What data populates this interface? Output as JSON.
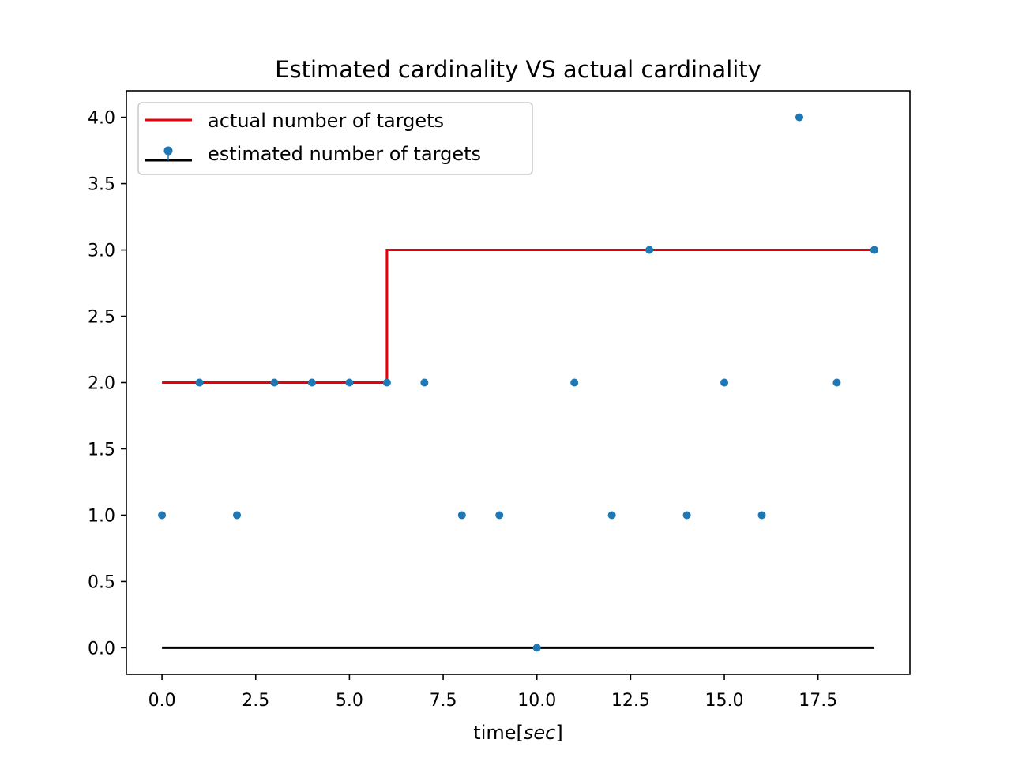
{
  "chart_data": {
    "type": "line",
    "title": "Estimated cardinality VS actual cardinality",
    "xlabel_prefix": "time[",
    "xlabel_unit": "sec",
    "xlabel_suffix": "]",
    "ylabel": "",
    "xlim": [
      -0.95,
      19.95
    ],
    "ylim": [
      -0.2,
      4.2
    ],
    "xticks": [
      0.0,
      2.5,
      5.0,
      7.5,
      10.0,
      12.5,
      15.0,
      17.5
    ],
    "xtick_labels": [
      "0.0",
      "2.5",
      "5.0",
      "7.5",
      "10.0",
      "12.5",
      "15.0",
      "17.5"
    ],
    "yticks": [
      0.0,
      0.5,
      1.0,
      1.5,
      2.0,
      2.5,
      3.0,
      3.5,
      4.0
    ],
    "ytick_labels": [
      "0.0",
      "0.5",
      "1.0",
      "1.5",
      "2.0",
      "2.5",
      "3.0",
      "3.5",
      "4.0"
    ],
    "grid": false,
    "legend_position": "top-left",
    "series": [
      {
        "name": "actual number of targets",
        "kind": "step",
        "color": "#e8000b",
        "x": [
          0,
          1,
          2,
          3,
          4,
          5,
          6,
          7,
          8,
          9,
          10,
          11,
          12,
          13,
          14,
          15,
          16,
          17,
          18,
          19
        ],
        "y": [
          2,
          2,
          2,
          2,
          2,
          2,
          2,
          3,
          3,
          3,
          3,
          3,
          3,
          3,
          3,
          3,
          3,
          3,
          3,
          3
        ]
      },
      {
        "name": "estimated number of targets",
        "kind": "stem",
        "marker_color": "#1f77b4",
        "baseline_color": "#000000",
        "x": [
          0,
          1,
          2,
          3,
          4,
          5,
          6,
          7,
          8,
          9,
          10,
          11,
          12,
          13,
          14,
          15,
          16,
          17,
          18,
          19
        ],
        "y": [
          1,
          2,
          1,
          2,
          2,
          2,
          2,
          2,
          1,
          1,
          0,
          2,
          1,
          3,
          1,
          2,
          1,
          4,
          2,
          3
        ]
      }
    ]
  }
}
